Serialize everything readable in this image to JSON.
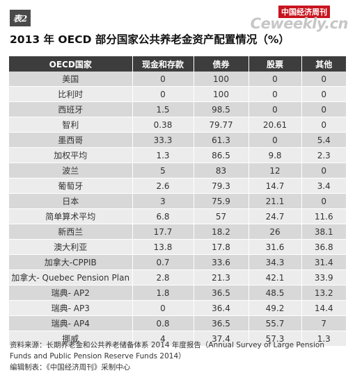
{
  "badge": "表2",
  "logo": {
    "cn": "中国经济周刊",
    "en": "Ceweekly.cn"
  },
  "title": "2013 年 OECD 部分国家公共养老金资产配置情况（%）",
  "table": {
    "headers": [
      "OECD国家",
      "现金和存款",
      "债券",
      "股票",
      "其他"
    ],
    "rows": [
      [
        "美国",
        "0",
        "100",
        "0",
        "0"
      ],
      [
        "比利时",
        "0",
        "100",
        "0",
        "0"
      ],
      [
        "西班牙",
        "1.5",
        "98.5",
        "0",
        "0"
      ],
      [
        "智利",
        "0.38",
        "79.77",
        "20.61",
        "0"
      ],
      [
        "墨西哥",
        "33.3",
        "61.3",
        "0",
        "5.4"
      ],
      [
        "加权平均",
        "1.3",
        "86.5",
        "9.8",
        "2.3"
      ],
      [
        "波兰",
        "5",
        "83",
        "12",
        "0"
      ],
      [
        "葡萄牙",
        "2.6",
        "79.3",
        "14.7",
        "3.4"
      ],
      [
        "日本",
        "3",
        "75.9",
        "21.1",
        "0"
      ],
      [
        "简单算术平均",
        "6.8",
        "57",
        "24.7",
        "11.6"
      ],
      [
        "新西兰",
        "17.7",
        "18.2",
        "26",
        "38.1"
      ],
      [
        "澳大利亚",
        "13.8",
        "17.8",
        "31.6",
        "36.8"
      ],
      [
        "加拿大-CPPIB",
        "0.7",
        "33.6",
        "34.3",
        "31.4"
      ],
      [
        "加拿大- Quebec Pension Plan",
        "2.8",
        "21.3",
        "42.1",
        "33.9"
      ],
      [
        "瑞典- AP2",
        "1.8",
        "36.5",
        "48.5",
        "13.2"
      ],
      [
        "瑞典- AP3",
        "0",
        "36.4",
        "49.2",
        "14.4"
      ],
      [
        "瑞典- AP4",
        "0.8",
        "36.5",
        "55.7",
        "7"
      ],
      [
        "挪威",
        "4",
        "37.4",
        "57.3",
        "1.3"
      ]
    ]
  },
  "footer": {
    "source": "资料来源：长期养老金和公共养老储备体系 2014 年度报告（Annual Survey of Large Pension Funds and Public Pension Reserve Funds 2014）",
    "editor": "编辑制表：《中国经济周刊》采制中心"
  }
}
